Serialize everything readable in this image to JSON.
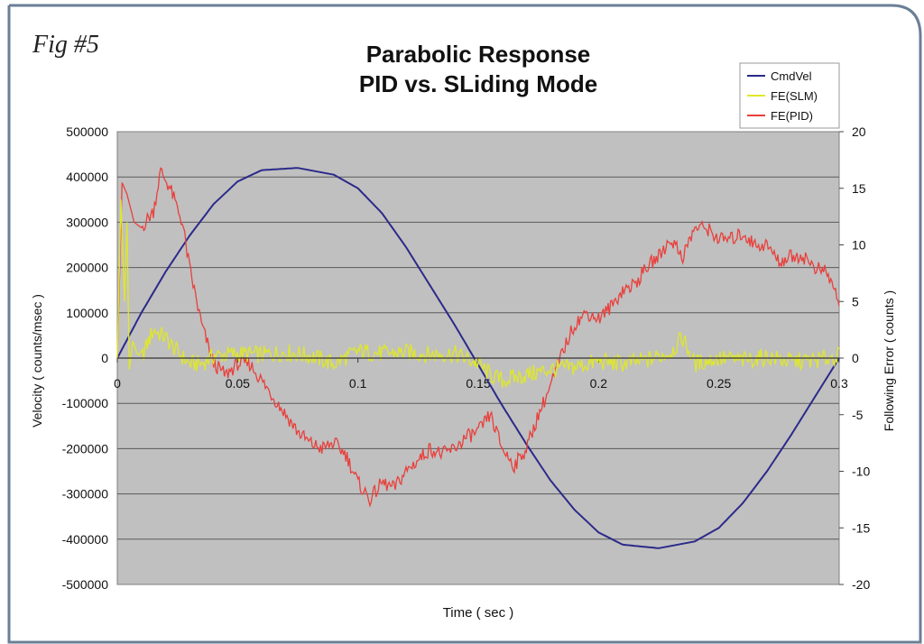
{
  "fig_label": "Fig #5",
  "chart_data": {
    "type": "line",
    "title_line1": "Parabolic Response",
    "title_line2": "PID vs. SLiding Mode",
    "xlabel": "Time ( sec )",
    "ylabel_left": "Velocity ( counts/msec )",
    "ylabel_right": "Following Error ( counts )",
    "xlim": [
      0,
      0.3
    ],
    "ylim_left": [
      -500000,
      500000
    ],
    "ylim_right": [
      -20,
      20
    ],
    "x_ticks": [
      "0",
      "0.05",
      "0.1",
      "0.15",
      "0.2",
      "0.25",
      "0.3"
    ],
    "y_ticks_left": [
      "500000",
      "400000",
      "300000",
      "200000",
      "100000",
      "0",
      "-100000",
      "-200000",
      "-300000",
      "-400000",
      "-500000"
    ],
    "y_ticks_right": [
      "20",
      "15",
      "10",
      "5",
      "0",
      "-5",
      "-10",
      "-15",
      "-20"
    ],
    "grid": "horizontal",
    "legend_position": "top-right",
    "series": [
      {
        "name": "CmdVel",
        "axis": "left",
        "color": "#2b2a8a",
        "x": [
          0,
          0.01,
          0.02,
          0.03,
          0.04,
          0.05,
          0.06,
          0.075,
          0.09,
          0.1,
          0.11,
          0.12,
          0.13,
          0.14,
          0.15,
          0.16,
          0.17,
          0.18,
          0.19,
          0.2,
          0.21,
          0.225,
          0.24,
          0.25,
          0.26,
          0.27,
          0.28,
          0.29,
          0.3
        ],
        "y": [
          0,
          100000,
          190000,
          270000,
          340000,
          390000,
          415000,
          420000,
          405000,
          375000,
          320000,
          245000,
          160000,
          75000,
          -15000,
          -105000,
          -190000,
          -270000,
          -335000,
          -385000,
          -412000,
          -420000,
          -405000,
          -375000,
          -320000,
          -250000,
          -170000,
          -85000,
          0
        ]
      },
      {
        "name": "FE(SLM)",
        "axis": "right",
        "color": "#dfe72c",
        "x": [
          0,
          0.0015,
          0.003,
          0.004,
          0.005,
          0.0065,
          0.008,
          0.01,
          0.015,
          0.02,
          0.025,
          0.03,
          0.035,
          0.04,
          0.05,
          0.06,
          0.07,
          0.08,
          0.09,
          0.1,
          0.11,
          0.12,
          0.13,
          0.14,
          0.15,
          0.155,
          0.16,
          0.17,
          0.18,
          0.19,
          0.2,
          0.21,
          0.22,
          0.23,
          0.235,
          0.24,
          0.25,
          0.26,
          0.27,
          0.28,
          0.29,
          0.3
        ],
        "y": [
          0,
          14,
          5,
          12,
          -1,
          1.5,
          0.5,
          0,
          2.5,
          1.8,
          0.5,
          -0.5,
          -0.5,
          0.2,
          0.4,
          0.3,
          0.5,
          0.2,
          -0.5,
          0.6,
          0.4,
          0.5,
          0.3,
          0.4,
          -0.5,
          -1.5,
          -2,
          -1.5,
          -1,
          -0.8,
          -0.3,
          -0.5,
          -0.2,
          0.5,
          1.8,
          -0.5,
          0,
          -0.2,
          0.1,
          -0.3,
          -0.2,
          0.2
        ]
      },
      {
        "name": "FE(PID)",
        "axis": "right",
        "color": "#e8403c",
        "x": [
          0,
          0.002,
          0.004,
          0.007,
          0.01,
          0.015,
          0.018,
          0.022,
          0.027,
          0.03,
          0.035,
          0.04,
          0.045,
          0.05,
          0.055,
          0.06,
          0.065,
          0.07,
          0.075,
          0.08,
          0.085,
          0.09,
          0.095,
          0.1,
          0.105,
          0.11,
          0.115,
          0.12,
          0.125,
          0.13,
          0.135,
          0.14,
          0.145,
          0.15,
          0.155,
          0.16,
          0.165,
          0.17,
          0.175,
          0.18,
          0.185,
          0.19,
          0.195,
          0.2,
          0.205,
          0.21,
          0.215,
          0.22,
          0.225,
          0.23,
          0.235,
          0.24,
          0.245,
          0.25,
          0.255,
          0.26,
          0.265,
          0.27,
          0.275,
          0.28,
          0.285,
          0.29,
          0.295,
          0.3
        ],
        "y": [
          0,
          15.5,
          14.5,
          12,
          11.5,
          13,
          16.5,
          15,
          12,
          8,
          3,
          -0.5,
          -1.5,
          -0.5,
          -0.5,
          -2,
          -3.5,
          -5,
          -6.5,
          -7.5,
          -8,
          -7.5,
          -8.5,
          -11,
          -12.5,
          -11,
          -11.5,
          -10,
          -9,
          -8,
          -8.5,
          -8,
          -7,
          -6.5,
          -5,
          -8,
          -9.5,
          -8,
          -5,
          -2.5,
          0.5,
          3,
          4,
          3.5,
          4.5,
          6,
          6.5,
          8,
          9,
          10.5,
          9,
          11.5,
          11.5,
          10.5,
          10.5,
          11,
          10,
          10,
          8.5,
          9,
          9,
          8,
          7.5,
          5
        ]
      }
    ]
  }
}
